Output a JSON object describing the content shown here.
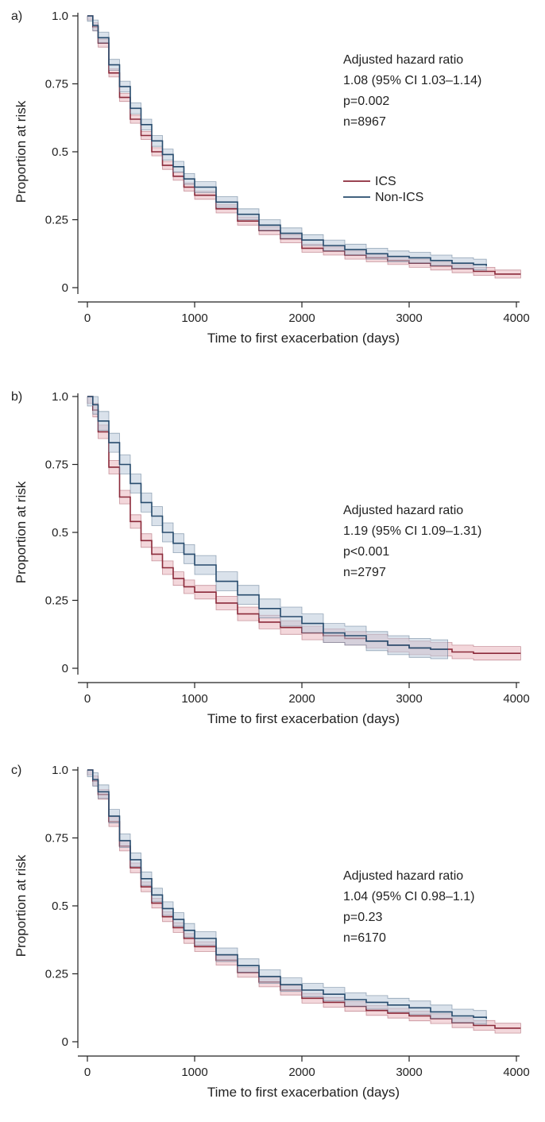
{
  "colors": {
    "ics": "#8b2a3a",
    "ics_band": "#e9b7bd",
    "non_ics": "#274b6d",
    "non_ics_band": "#bccbdb"
  },
  "chart_data": [
    {
      "type": "line",
      "panel_label": "a)",
      "xlabel": "Time to first exacerbation (days)",
      "ylabel": "Proportion at risk",
      "xlim": [
        0,
        4000
      ],
      "ylim": [
        0,
        1.0
      ],
      "x_ticks": [
        0,
        1000,
        2000,
        3000,
        4000
      ],
      "y_ticks": [
        0,
        0.25,
        0.5,
        0.75,
        1.0
      ],
      "y_tick_labels": [
        "0",
        "0.25",
        "0.5",
        "0.75",
        "1.0"
      ],
      "annotation": [
        "Adjusted hazard ratio",
        "1.08 (95% CI 1.03–1.14)",
        "p=0.002",
        "n=8967"
      ],
      "legend": {
        "placement": "center-right",
        "entries": [
          "ICS",
          "Non-ICS"
        ]
      },
      "series": [
        {
          "name": "ICS",
          "x": [
            0,
            50,
            100,
            200,
            300,
            400,
            500,
            600,
            700,
            800,
            900,
            1000,
            1200,
            1400,
            1600,
            1800,
            2000,
            2200,
            2400,
            2600,
            2800,
            3000,
            3200,
            3400,
            3600,
            3800,
            4040
          ],
          "y": [
            1.0,
            0.96,
            0.9,
            0.79,
            0.7,
            0.62,
            0.56,
            0.5,
            0.45,
            0.41,
            0.37,
            0.34,
            0.29,
            0.245,
            0.21,
            0.18,
            0.145,
            0.135,
            0.12,
            0.11,
            0.1,
            0.09,
            0.08,
            0.07,
            0.06,
            0.05,
            0.05
          ],
          "band": 0.015
        },
        {
          "name": "Non-ICS",
          "x": [
            0,
            50,
            100,
            200,
            300,
            400,
            500,
            600,
            700,
            800,
            900,
            1000,
            1200,
            1400,
            1600,
            1800,
            2000,
            2200,
            2400,
            2600,
            2800,
            3000,
            3200,
            3400,
            3600,
            3720
          ],
          "y": [
            1.0,
            0.965,
            0.92,
            0.82,
            0.74,
            0.66,
            0.6,
            0.54,
            0.49,
            0.445,
            0.4,
            0.37,
            0.315,
            0.27,
            0.23,
            0.2,
            0.175,
            0.155,
            0.14,
            0.125,
            0.115,
            0.11,
            0.1,
            0.09,
            0.085,
            0.08
          ],
          "band": 0.02
        }
      ]
    },
    {
      "type": "line",
      "panel_label": "b)",
      "xlabel": "Time to first exacerbation (days)",
      "ylabel": "Proportion at risk",
      "xlim": [
        0,
        4000
      ],
      "ylim": [
        0,
        1.0
      ],
      "x_ticks": [
        0,
        1000,
        2000,
        3000,
        4000
      ],
      "y_ticks": [
        0,
        0.25,
        0.5,
        0.75,
        1.0
      ],
      "y_tick_labels": [
        "0",
        "0.25",
        "0.5",
        "0.75",
        "1.0"
      ],
      "annotation": [
        "Adjusted hazard ratio",
        "1.19 (95% CI 1.09–1.31)",
        "p<0.001",
        "n=2797"
      ],
      "legend": {
        "placement": "none",
        "entries": []
      },
      "series": [
        {
          "name": "ICS",
          "x": [
            0,
            50,
            100,
            200,
            300,
            400,
            500,
            600,
            700,
            800,
            900,
            1000,
            1200,
            1400,
            1600,
            1800,
            2000,
            2200,
            2400,
            2600,
            2800,
            3000,
            3200,
            3400,
            3600,
            3800,
            4040
          ],
          "y": [
            1.0,
            0.95,
            0.87,
            0.74,
            0.63,
            0.54,
            0.47,
            0.42,
            0.37,
            0.33,
            0.3,
            0.28,
            0.24,
            0.2,
            0.17,
            0.15,
            0.13,
            0.12,
            0.11,
            0.1,
            0.085,
            0.075,
            0.07,
            0.06,
            0.055,
            0.055,
            0.055
          ],
          "band": 0.025
        },
        {
          "name": "Non-ICS",
          "x": [
            0,
            50,
            100,
            200,
            300,
            400,
            500,
            600,
            700,
            800,
            900,
            1000,
            1200,
            1400,
            1600,
            1800,
            2000,
            2200,
            2400,
            2600,
            2800,
            3000,
            3200,
            3360
          ],
          "y": [
            1.0,
            0.97,
            0.91,
            0.83,
            0.75,
            0.68,
            0.61,
            0.56,
            0.5,
            0.46,
            0.42,
            0.38,
            0.32,
            0.27,
            0.22,
            0.19,
            0.165,
            0.13,
            0.12,
            0.1,
            0.085,
            0.075,
            0.07,
            0.07
          ],
          "band": 0.035
        }
      ]
    },
    {
      "type": "line",
      "panel_label": "c)",
      "xlabel": "Time to first exacerbation (days)",
      "ylabel": "Proportion at risk",
      "xlim": [
        0,
        4000
      ],
      "ylim": [
        0,
        1.0
      ],
      "x_ticks": [
        0,
        1000,
        2000,
        3000,
        4000
      ],
      "y_ticks": [
        0,
        0.25,
        0.5,
        0.75,
        1.0
      ],
      "y_tick_labels": [
        "0",
        "0.25",
        "0.5",
        "0.75",
        "1.0"
      ],
      "annotation": [
        "Adjusted hazard ratio",
        "1.04 (95% CI 0.98–1.1)",
        "p=0.23",
        "n=6170"
      ],
      "legend": {
        "placement": "none",
        "entries": []
      },
      "series": [
        {
          "name": "ICS",
          "x": [
            0,
            50,
            100,
            200,
            300,
            400,
            500,
            600,
            700,
            800,
            900,
            1000,
            1200,
            1400,
            1600,
            1800,
            2000,
            2200,
            2400,
            2600,
            2800,
            3000,
            3200,
            3400,
            3600,
            3800,
            4040
          ],
          "y": [
            1.0,
            0.96,
            0.91,
            0.81,
            0.72,
            0.64,
            0.57,
            0.51,
            0.46,
            0.42,
            0.38,
            0.35,
            0.3,
            0.255,
            0.22,
            0.19,
            0.16,
            0.145,
            0.13,
            0.115,
            0.105,
            0.095,
            0.085,
            0.07,
            0.06,
            0.05,
            0.05
          ],
          "band": 0.018
        },
        {
          "name": "Non-ICS",
          "x": [
            0,
            50,
            100,
            200,
            300,
            400,
            500,
            600,
            700,
            800,
            900,
            1000,
            1200,
            1400,
            1600,
            1800,
            2000,
            2200,
            2400,
            2600,
            2800,
            3000,
            3200,
            3400,
            3600,
            3720
          ],
          "y": [
            1.0,
            0.965,
            0.92,
            0.83,
            0.74,
            0.67,
            0.6,
            0.54,
            0.49,
            0.45,
            0.41,
            0.38,
            0.32,
            0.28,
            0.24,
            0.21,
            0.19,
            0.175,
            0.155,
            0.145,
            0.135,
            0.125,
            0.11,
            0.095,
            0.09,
            0.085
          ],
          "band": 0.025
        }
      ]
    }
  ]
}
